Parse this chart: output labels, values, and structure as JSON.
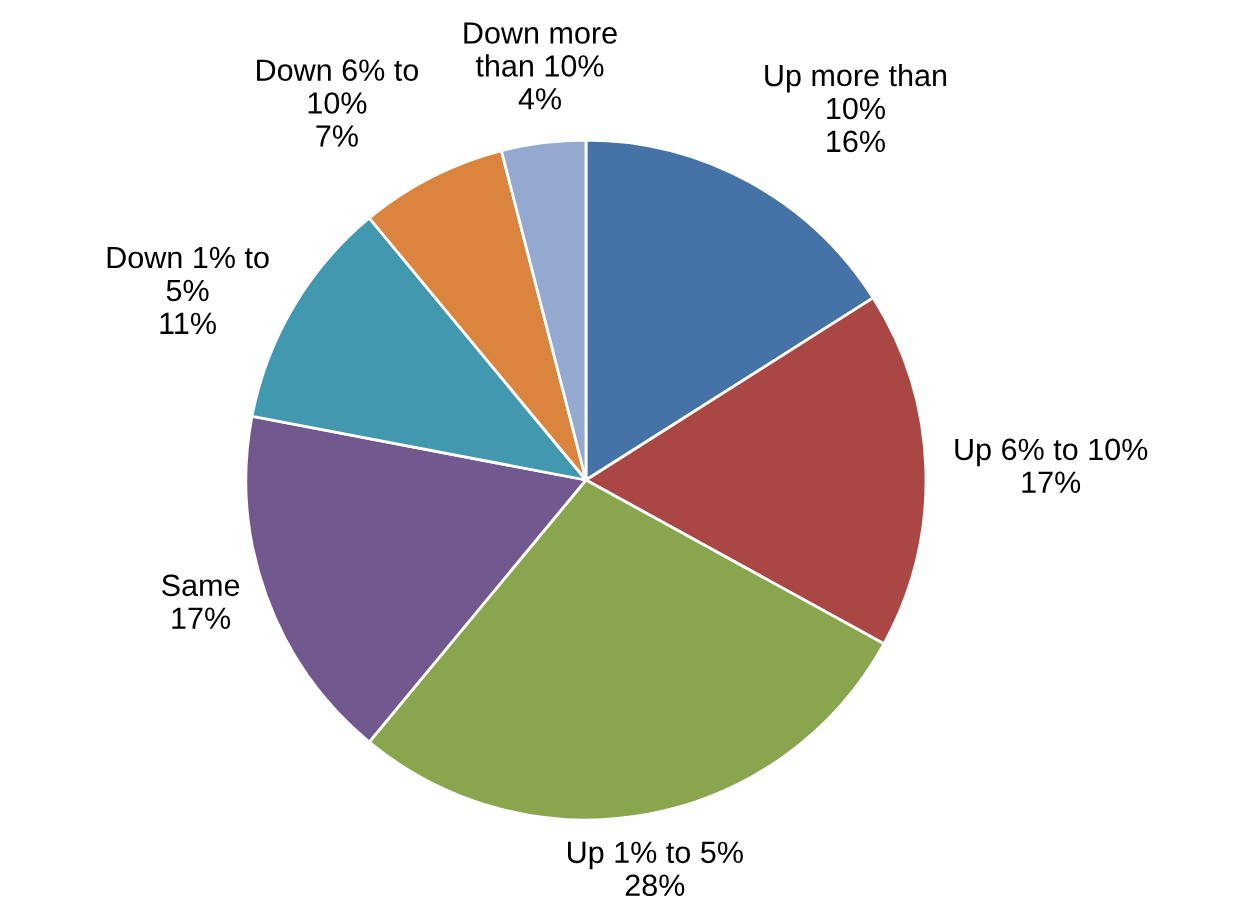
{
  "chart_data": {
    "type": "pie",
    "categories": [
      "Up more than\n10%",
      "Up 6% to 10%",
      "Up 1% to 5%",
      "Same",
      "Down 1% to\n5%",
      "Down 6% to\n10%",
      "Down more\nthan 10%"
    ],
    "values": [
      16,
      17,
      28,
      17,
      11,
      7,
      4
    ],
    "value_labels": [
      "16%",
      "17%",
      "28%",
      "17%",
      "11%",
      "7%",
      "4%"
    ],
    "colors": [
      "#4572a7",
      "#aa4643",
      "#89a54e",
      "#71588f",
      "#4198af",
      "#db843d",
      "#93a9cf"
    ],
    "legend": false
  }
}
